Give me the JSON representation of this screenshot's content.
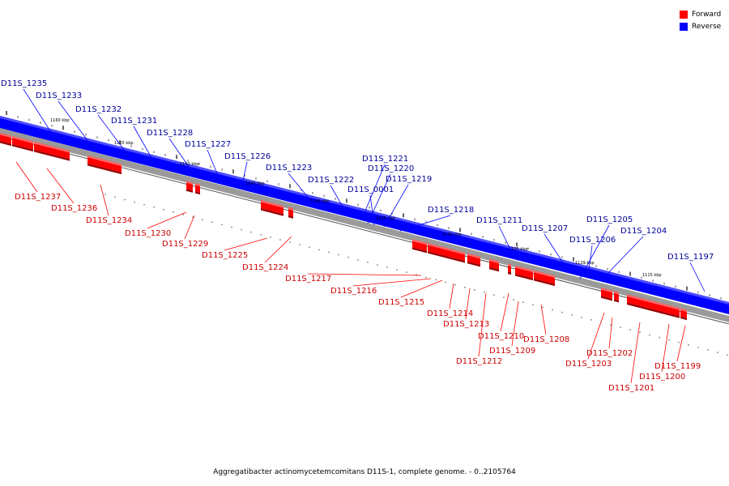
{
  "legend": {
    "items": [
      {
        "label": "Forward",
        "color": "#ff0000"
      },
      {
        "label": "Reverse",
        "color": "#0000ff"
      }
    ]
  },
  "footer": {
    "text": "Aggregatibacter actinomycetemcomitans D11S-1, complete genome. - 0..2105764"
  },
  "colors": {
    "forward": "#ff0000",
    "reverse": "#0000ff",
    "forward_label": "#cc0000",
    "reverse_label": "#000099"
  },
  "scale_ticks": [
    "1160 kbp",
    "1155 kbp",
    "1150 kbp",
    "1145 kbp",
    "1140 kbp",
    "1135 kbp",
    "1130 kbp",
    "1125 kbp",
    "1120 kbp",
    "1115 kbp"
  ],
  "reverse_genes": [
    "D11S_1235",
    "D11S_1233",
    "D11S_1232",
    "D11S_1231",
    "D11S_1228",
    "D11S_1227",
    "D11S_1226",
    "D11S_1223",
    "D11S_1222",
    "D11S_1221",
    "D11S_1220",
    "D11S_0001",
    "D11S_1219",
    "D11S_1218",
    "D11S_1211",
    "D11S_1207",
    "D11S_1205",
    "D11S_1206",
    "D11S_1204",
    "D11S_1197"
  ],
  "forward_genes": [
    "D11S_1237",
    "D11S_1236",
    "D11S_1234",
    "D11S_1230",
    "D11S_1229",
    "D11S_1225",
    "D11S_1224",
    "D11S_1217",
    "D11S_1216",
    "D11S_1215",
    "D11S_1214",
    "D11S_1213",
    "D11S_1212",
    "D11S_1210",
    "D11S_1209",
    "D11S_1208",
    "D11S_1203",
    "D11S_1202",
    "D11S_1201",
    "D11S_1200",
    "D11S_1199"
  ]
}
